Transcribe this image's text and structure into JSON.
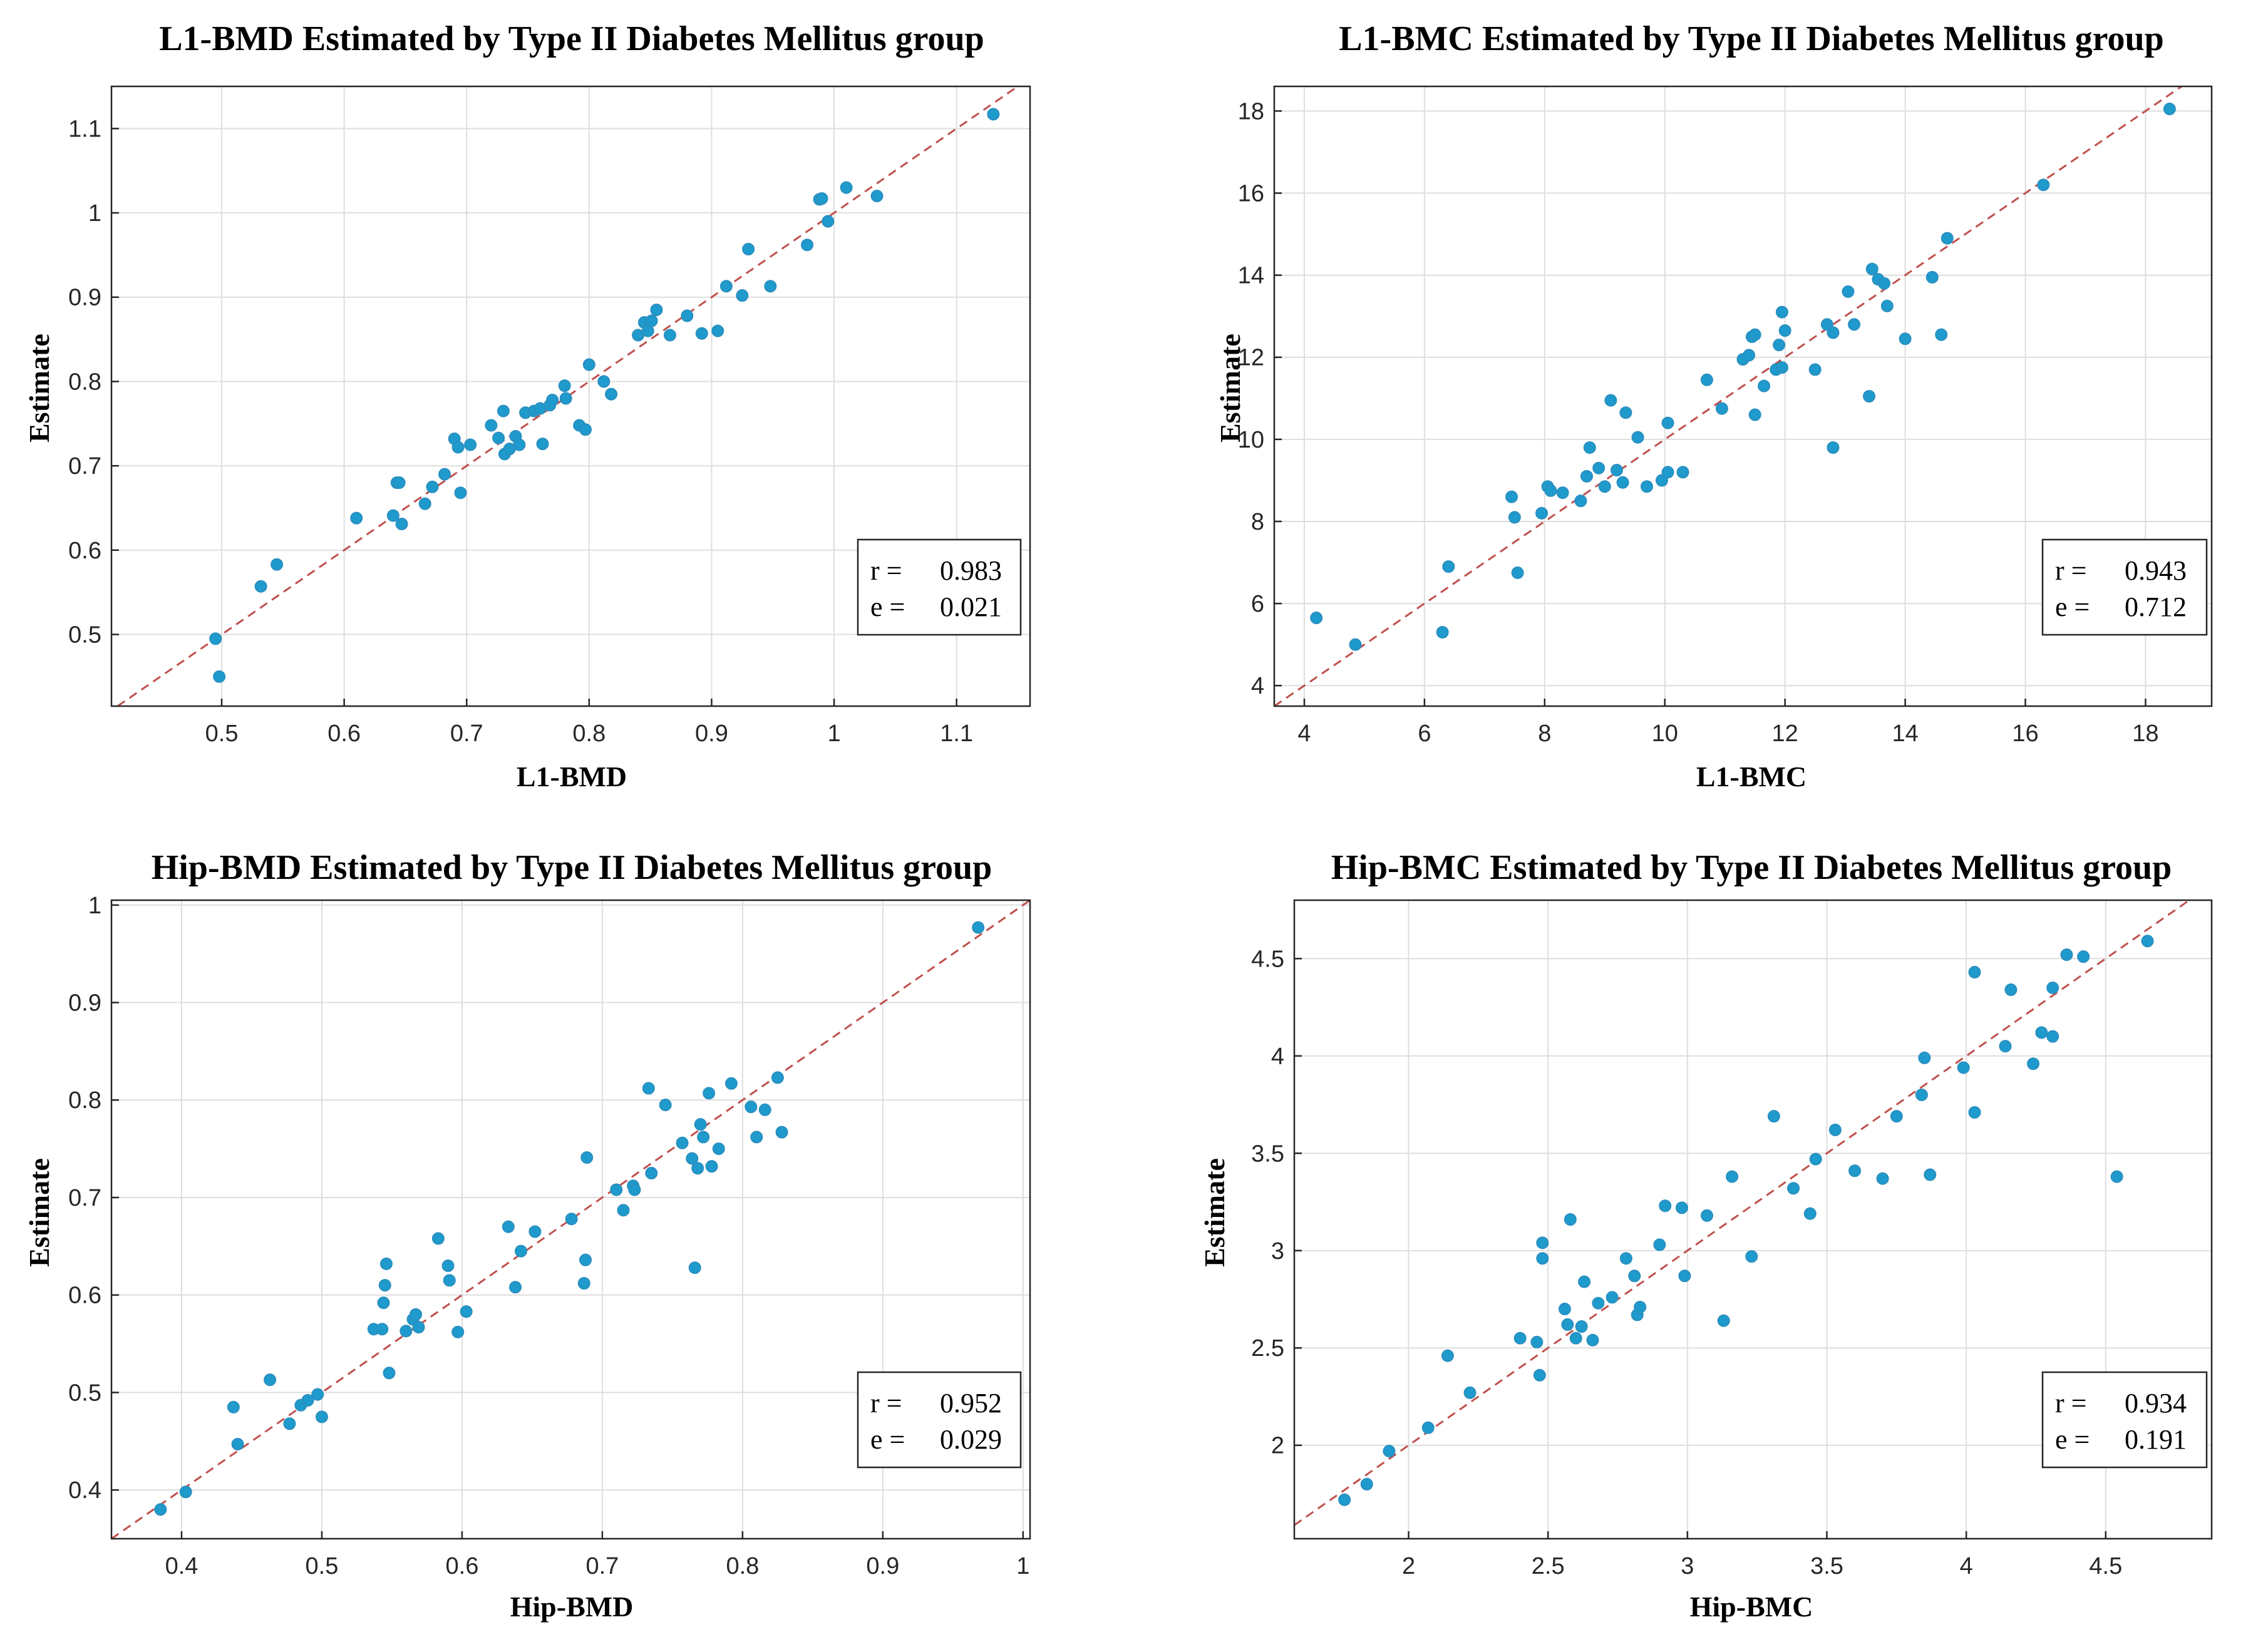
{
  "colors": {
    "point": "#1f9acd",
    "diagonal": "#c0504d"
  },
  "chart_data": [
    {
      "type": "scatter",
      "title": "L1-BMD Estimated by Type II Diabetes Mellitus group",
      "xlabel": "L1-BMD",
      "ylabel": "Estimate",
      "xlim": [
        0.41,
        1.16
      ],
      "ylim": [
        0.415,
        1.15
      ],
      "xticks": [
        0.5,
        0.6,
        0.7,
        0.8,
        0.9,
        1,
        1.1
      ],
      "xtick_labels": [
        "0.5",
        "0.6",
        "0.7",
        "0.8",
        "0.9",
        "1",
        "1.1"
      ],
      "yticks": [
        0.5,
        0.6,
        0.7,
        0.8,
        0.9,
        1,
        1.1
      ],
      "ytick_labels": [
        "0.5",
        "0.6",
        "0.7",
        "0.8",
        "0.9",
        "1",
        "1.1"
      ],
      "grid": true,
      "reference_line": "y = x",
      "stats": {
        "r_label": "r =",
        "r": "0.983",
        "e_label": "e =",
        "e": "0.021"
      },
      "stats_position": "bottom-right",
      "points": [
        [
          0.495,
          0.495
        ],
        [
          0.498,
          0.45
        ],
        [
          0.532,
          0.557
        ],
        [
          0.545,
          0.583
        ],
        [
          0.61,
          0.638
        ],
        [
          0.64,
          0.641
        ],
        [
          0.643,
          0.68
        ],
        [
          0.645,
          0.68
        ],
        [
          0.647,
          0.631
        ],
        [
          0.666,
          0.655
        ],
        [
          0.672,
          0.675
        ],
        [
          0.682,
          0.69
        ],
        [
          0.69,
          0.732
        ],
        [
          0.693,
          0.722
        ],
        [
          0.695,
          0.668
        ],
        [
          0.703,
          0.725
        ],
        [
          0.72,
          0.748
        ],
        [
          0.726,
          0.733
        ],
        [
          0.73,
          0.765
        ],
        [
          0.731,
          0.714
        ],
        [
          0.735,
          0.72
        ],
        [
          0.74,
          0.735
        ],
        [
          0.743,
          0.725
        ],
        [
          0.748,
          0.763
        ],
        [
          0.755,
          0.765
        ],
        [
          0.76,
          0.768
        ],
        [
          0.762,
          0.726
        ],
        [
          0.768,
          0.772
        ],
        [
          0.77,
          0.778
        ],
        [
          0.78,
          0.795
        ],
        [
          0.781,
          0.78
        ],
        [
          0.792,
          0.748
        ],
        [
          0.797,
          0.743
        ],
        [
          0.8,
          0.82
        ],
        [
          0.812,
          0.8
        ],
        [
          0.818,
          0.785
        ],
        [
          0.84,
          0.855
        ],
        [
          0.845,
          0.87
        ],
        [
          0.848,
          0.86
        ],
        [
          0.851,
          0.872
        ],
        [
          0.855,
          0.885
        ],
        [
          0.866,
          0.855
        ],
        [
          0.88,
          0.878
        ],
        [
          0.892,
          0.857
        ],
        [
          0.905,
          0.86
        ],
        [
          0.912,
          0.913
        ],
        [
          0.925,
          0.902
        ],
        [
          0.93,
          0.957
        ],
        [
          0.948,
          0.913
        ],
        [
          0.978,
          0.962
        ],
        [
          0.988,
          1.016
        ],
        [
          0.99,
          1.017
        ],
        [
          0.995,
          0.99
        ],
        [
          1.01,
          1.03
        ],
        [
          1.035,
          1.02
        ],
        [
          1.13,
          1.117
        ]
      ]
    },
    {
      "type": "scatter",
      "title": "L1-BMC Estimated by Type II Diabetes Mellitus group",
      "xlabel": "L1-BMC",
      "ylabel": "Estimate",
      "xlim": [
        3.5,
        19.1
      ],
      "ylim": [
        3.5,
        18.6
      ],
      "xticks": [
        4,
        6,
        8,
        10,
        12,
        14,
        16,
        18
      ],
      "xtick_labels": [
        "4",
        "6",
        "8",
        "10",
        "12",
        "14",
        "16",
        "18"
      ],
      "yticks": [
        4,
        6,
        8,
        10,
        12,
        14,
        16,
        18
      ],
      "ytick_labels": [
        "4",
        "6",
        "8",
        "10",
        "12",
        "14",
        "16",
        "18"
      ],
      "grid": true,
      "reference_line": "y = x",
      "stats": {
        "r_label": "r =",
        "r": "0.943",
        "e_label": "e =",
        "e": "0.712"
      },
      "stats_position": "bottom-right",
      "points": [
        [
          4.2,
          5.65
        ],
        [
          4.85,
          5.0
        ],
        [
          6.3,
          5.3
        ],
        [
          6.4,
          6.9
        ],
        [
          7.45,
          8.6
        ],
        [
          7.5,
          8.1
        ],
        [
          7.55,
          6.75
        ],
        [
          7.95,
          8.2
        ],
        [
          8.05,
          8.85
        ],
        [
          8.1,
          8.75
        ],
        [
          8.3,
          8.7
        ],
        [
          8.6,
          8.5
        ],
        [
          8.7,
          9.1
        ],
        [
          8.75,
          9.8
        ],
        [
          8.9,
          9.3
        ],
        [
          9.0,
          8.85
        ],
        [
          9.1,
          10.95
        ],
        [
          9.2,
          9.25
        ],
        [
          9.3,
          8.95
        ],
        [
          9.35,
          10.65
        ],
        [
          9.55,
          10.05
        ],
        [
          9.7,
          8.85
        ],
        [
          9.95,
          9.0
        ],
        [
          10.05,
          10.4
        ],
        [
          10.05,
          9.2
        ],
        [
          10.3,
          9.2
        ],
        [
          10.7,
          11.45
        ],
        [
          10.95,
          10.75
        ],
        [
          11.3,
          11.95
        ],
        [
          11.4,
          12.05
        ],
        [
          11.45,
          12.5
        ],
        [
          11.5,
          12.55
        ],
        [
          11.5,
          10.6
        ],
        [
          11.65,
          11.3
        ],
        [
          11.85,
          11.7
        ],
        [
          11.9,
          12.3
        ],
        [
          11.95,
          11.75
        ],
        [
          11.95,
          13.1
        ],
        [
          12.0,
          12.65
        ],
        [
          12.5,
          11.7
        ],
        [
          12.7,
          12.8
        ],
        [
          12.8,
          9.8
        ],
        [
          12.8,
          12.6
        ],
        [
          13.05,
          13.6
        ],
        [
          13.15,
          12.8
        ],
        [
          13.4,
          11.05
        ],
        [
          13.45,
          14.15
        ],
        [
          13.55,
          13.9
        ],
        [
          13.65,
          13.8
        ],
        [
          13.7,
          13.25
        ],
        [
          14.0,
          12.45
        ],
        [
          14.45,
          13.95
        ],
        [
          14.6,
          12.55
        ],
        [
          14.7,
          14.9
        ],
        [
          16.3,
          16.2
        ],
        [
          18.4,
          18.05
        ]
      ]
    },
    {
      "type": "scatter",
      "title": "Hip-BMD Estimated by Type II Diabetes Mellitus group",
      "xlabel": "Hip-BMD",
      "ylabel": "Estimate",
      "xlim": [
        0.35,
        1.005
      ],
      "ylim": [
        0.35,
        1.005
      ],
      "xticks": [
        0.4,
        0.5,
        0.6,
        0.7,
        0.8,
        0.9,
        1
      ],
      "xtick_labels": [
        "0.4",
        "0.5",
        "0.6",
        "0.7",
        "0.8",
        "0.9",
        "1"
      ],
      "yticks": [
        0.4,
        0.5,
        0.6,
        0.7,
        0.8,
        0.9,
        1
      ],
      "ytick_labels": [
        "0.4",
        "0.5",
        "0.6",
        "0.7",
        "0.8",
        "0.9",
        "1"
      ],
      "grid": true,
      "reference_line": "y = x",
      "stats": {
        "r_label": "r =",
        "r": "0.952",
        "e_label": "e =",
        "e": "0.029"
      },
      "stats_position": "bottom-right",
      "points": [
        [
          0.385,
          0.38
        ],
        [
          0.403,
          0.398
        ],
        [
          0.437,
          0.485
        ],
        [
          0.44,
          0.447
        ],
        [
          0.463,
          0.513
        ],
        [
          0.477,
          0.468
        ],
        [
          0.485,
          0.487
        ],
        [
          0.49,
          0.492
        ],
        [
          0.497,
          0.498
        ],
        [
          0.5,
          0.475
        ],
        [
          0.537,
          0.565
        ],
        [
          0.543,
          0.565
        ],
        [
          0.544,
          0.592
        ],
        [
          0.545,
          0.61
        ],
        [
          0.546,
          0.632
        ],
        [
          0.548,
          0.52
        ],
        [
          0.56,
          0.563
        ],
        [
          0.565,
          0.575
        ],
        [
          0.567,
          0.58
        ],
        [
          0.569,
          0.567
        ],
        [
          0.583,
          0.658
        ],
        [
          0.59,
          0.63
        ],
        [
          0.591,
          0.615
        ],
        [
          0.597,
          0.562
        ],
        [
          0.603,
          0.583
        ],
        [
          0.633,
          0.67
        ],
        [
          0.638,
          0.608
        ],
        [
          0.642,
          0.645
        ],
        [
          0.652,
          0.665
        ],
        [
          0.678,
          0.678
        ],
        [
          0.687,
          0.612
        ],
        [
          0.688,
          0.636
        ],
        [
          0.689,
          0.741
        ],
        [
          0.71,
          0.708
        ],
        [
          0.715,
          0.687
        ],
        [
          0.722,
          0.712
        ],
        [
          0.723,
          0.708
        ],
        [
          0.733,
          0.812
        ],
        [
          0.735,
          0.725
        ],
        [
          0.745,
          0.795
        ],
        [
          0.757,
          0.756
        ],
        [
          0.764,
          0.74
        ],
        [
          0.766,
          0.628
        ],
        [
          0.768,
          0.73
        ],
        [
          0.77,
          0.775
        ],
        [
          0.772,
          0.762
        ],
        [
          0.776,
          0.807
        ],
        [
          0.778,
          0.732
        ],
        [
          0.783,
          0.75
        ],
        [
          0.792,
          0.817
        ],
        [
          0.806,
          0.793
        ],
        [
          0.81,
          0.762
        ],
        [
          0.816,
          0.79
        ],
        [
          0.825,
          0.823
        ],
        [
          0.828,
          0.767
        ],
        [
          0.968,
          0.977
        ]
      ]
    },
    {
      "type": "scatter",
      "title": "Hip-BMC Estimated by Type II Diabetes Mellitus group",
      "xlabel": "Hip-BMC",
      "ylabel": "Estimate",
      "xlim": [
        1.59,
        4.88
      ],
      "ylim": [
        1.52,
        4.8
      ],
      "xticks": [
        2,
        2.5,
        3,
        3.5,
        4,
        4.5
      ],
      "xtick_labels": [
        "2",
        "2.5",
        "3",
        "3.5",
        "4",
        "4.5"
      ],
      "yticks": [
        2,
        2.5,
        3,
        3.5,
        4,
        4.5
      ],
      "ytick_labels": [
        "2",
        "2.5",
        "3",
        "3.5",
        "4",
        "4.5"
      ],
      "grid": true,
      "reference_line": "y = x",
      "stats": {
        "r_label": "r =",
        "r": "0.934",
        "e_label": "e =",
        "e": "0.191"
      },
      "stats_position": "bottom-right",
      "points": [
        [
          1.77,
          1.72
        ],
        [
          1.85,
          1.8
        ],
        [
          1.93,
          1.97
        ],
        [
          2.07,
          2.09
        ],
        [
          2.14,
          2.46
        ],
        [
          2.22,
          2.27
        ],
        [
          2.4,
          2.55
        ],
        [
          2.46,
          2.53
        ],
        [
          2.47,
          2.36
        ],
        [
          2.48,
          3.04
        ],
        [
          2.48,
          2.96
        ],
        [
          2.56,
          2.7
        ],
        [
          2.57,
          2.62
        ],
        [
          2.58,
          3.16
        ],
        [
          2.6,
          2.55
        ],
        [
          2.62,
          2.61
        ],
        [
          2.63,
          2.84
        ],
        [
          2.66,
          2.54
        ],
        [
          2.68,
          2.73
        ],
        [
          2.73,
          2.76
        ],
        [
          2.78,
          2.96
        ],
        [
          2.81,
          2.87
        ],
        [
          2.82,
          2.67
        ],
        [
          2.83,
          2.71
        ],
        [
          2.9,
          3.03
        ],
        [
          2.92,
          3.23
        ],
        [
          2.98,
          3.22
        ],
        [
          2.99,
          2.87
        ],
        [
          3.07,
          3.18
        ],
        [
          3.13,
          2.64
        ],
        [
          3.16,
          3.38
        ],
        [
          3.23,
          2.97
        ],
        [
          3.31,
          3.69
        ],
        [
          3.38,
          3.32
        ],
        [
          3.44,
          3.19
        ],
        [
          3.46,
          3.47
        ],
        [
          3.53,
          3.62
        ],
        [
          3.6,
          3.41
        ],
        [
          3.7,
          3.37
        ],
        [
          3.75,
          3.69
        ],
        [
          3.84,
          3.8
        ],
        [
          3.85,
          3.99
        ],
        [
          3.87,
          3.39
        ],
        [
          3.99,
          3.94
        ],
        [
          4.03,
          4.43
        ],
        [
          4.03,
          3.71
        ],
        [
          4.14,
          4.05
        ],
        [
          4.16,
          4.34
        ],
        [
          4.24,
          3.96
        ],
        [
          4.27,
          4.12
        ],
        [
          4.31,
          4.1
        ],
        [
          4.31,
          4.35
        ],
        [
          4.36,
          4.52
        ],
        [
          4.42,
          4.51
        ],
        [
          4.54,
          3.38
        ],
        [
          4.65,
          4.59
        ]
      ]
    }
  ]
}
